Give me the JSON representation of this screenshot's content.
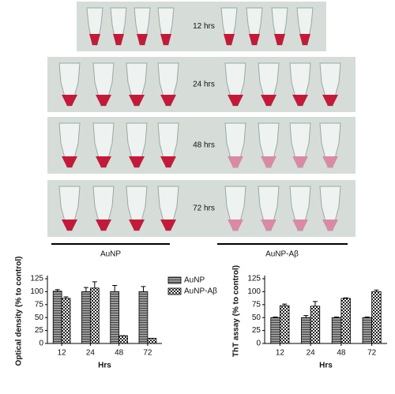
{
  "photos": {
    "rows": [
      "12 hrs",
      "24 hrs",
      "48 hrs",
      "72 hrs"
    ],
    "groups": [
      "AuNP",
      "AuNP-Aβ"
    ]
  },
  "chart_data": [
    {
      "type": "bar",
      "ylabel": "Optical density (% to control)",
      "xlabel": "Hrs",
      "categories": [
        "12",
        "24",
        "48",
        "72"
      ],
      "series": [
        {
          "name": "AuNP",
          "color": "#8c8c8c",
          "hatch": "lines",
          "values": [
            101,
            100,
            100,
            100
          ],
          "errors": [
            3,
            8,
            12,
            10
          ]
        },
        {
          "name": "AuNP-Aβ",
          "color": "#ffffff",
          "hatch": "checker",
          "values": [
            87,
            107,
            15,
            10
          ],
          "errors": [
            3,
            12,
            0,
            0
          ]
        }
      ],
      "ylim": [
        0,
        125
      ],
      "yticks": [
        0,
        25,
        50,
        75,
        100,
        125
      ],
      "legend": "upper right"
    },
    {
      "type": "bar",
      "ylabel": "ThT assay (% to control)",
      "xlabel": "Hrs",
      "categories": [
        "12",
        "24",
        "48",
        "72"
      ],
      "series": [
        {
          "color": "#8c8c8c",
          "hatch": "lines",
          "values": [
            50,
            50,
            50,
            50
          ],
          "errors": [
            1,
            4,
            1,
            1
          ]
        },
        {
          "color": "#ffffff",
          "hatch": "checker",
          "values": [
            73,
            72,
            87,
            100
          ],
          "errors": [
            3,
            9,
            1,
            3
          ]
        }
      ],
      "ylim": [
        0,
        125
      ],
      "yticks": [
        0,
        25,
        50,
        75,
        100,
        125
      ]
    }
  ]
}
